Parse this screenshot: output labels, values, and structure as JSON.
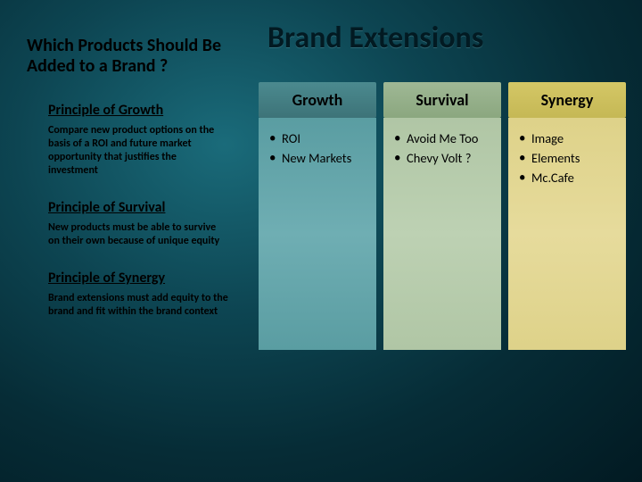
{
  "title": "Brand Extensions",
  "question": "Which Products Should Be Added to a Brand ?",
  "principles": [
    {
      "title": "Principle of Growth",
      "body": "Compare new product options on the basis of a ROI and future market opportunity that justifies the investment"
    },
    {
      "title": "Principle of Survival",
      "body": "New products must be able to survive on their own because of unique equity"
    },
    {
      "title": "Principle of Synergy",
      "body": "Brand extensions must add equity to the brand and fit within the brand context"
    }
  ],
  "columns": [
    {
      "key": "growth",
      "header": "Growth",
      "items": [
        "ROI",
        "New Markets"
      ]
    },
    {
      "key": "survival",
      "header": "Survival",
      "items": [
        "Avoid Me Too",
        "Chevy Volt ?"
      ]
    },
    {
      "key": "synergy",
      "header": "Synergy",
      "items": [
        "Image",
        "Elements",
        "Mc.Cafe"
      ]
    }
  ],
  "colors": {
    "background_gradient": [
      "#1a6b7a",
      "#0d4552",
      "#062c36",
      "#021a22"
    ],
    "growth": {
      "header": "#3d7378",
      "body": "#6faeb3"
    },
    "survival": {
      "header": "#8ba77f",
      "body": "#bdd1b3"
    },
    "synergy": {
      "header": "#c5b855",
      "body": "#e6db9c"
    }
  },
  "fonts": {
    "title_size": 34,
    "question_size": 20,
    "principle_title_size": 16,
    "principle_body_size": 12,
    "col_header_size": 18,
    "col_item_size": 14.5
  }
}
